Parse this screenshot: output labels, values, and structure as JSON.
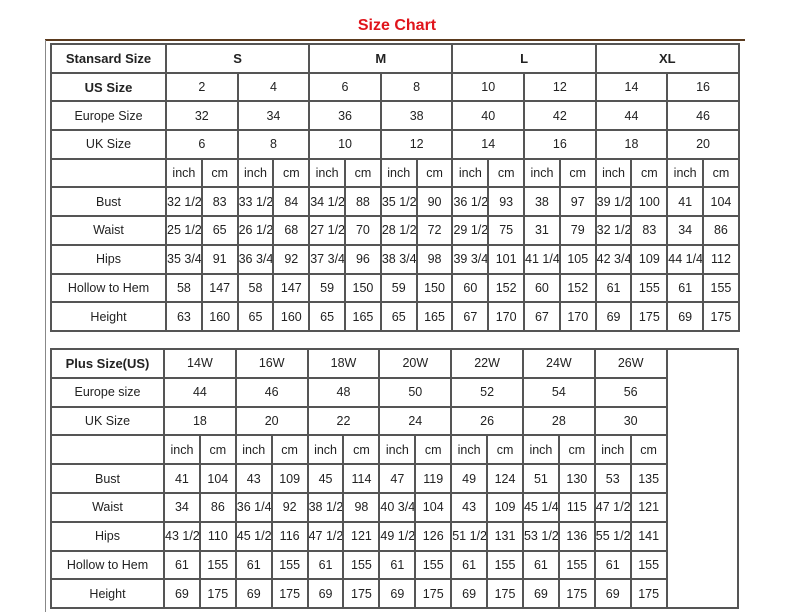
{
  "title": "Size Chart",
  "standard": {
    "header_label": "Stansard Size",
    "groups": [
      "S",
      "M",
      "L",
      "XL"
    ],
    "us_label": "US Size",
    "us": [
      "2",
      "4",
      "6",
      "8",
      "10",
      "12",
      "14",
      "16"
    ],
    "europe_label": "Europe Size",
    "europe": [
      "32",
      "34",
      "36",
      "38",
      "40",
      "42",
      "44",
      "46"
    ],
    "uk_label": "UK Size",
    "uk": [
      "6",
      "8",
      "10",
      "12",
      "14",
      "16",
      "18",
      "20"
    ],
    "unit_inch": "inch",
    "unit_cm": "cm",
    "rows": [
      {
        "label": "Bust",
        "values": [
          "32 1/2",
          "83",
          "33 1/2",
          "84",
          "34 1/2",
          "88",
          "35 1/2",
          "90",
          "36 1/2",
          "93",
          "38",
          "97",
          "39 1/2",
          "100",
          "41",
          "104"
        ]
      },
      {
        "label": "Waist",
        "values": [
          "25 1/2",
          "65",
          "26 1/2",
          "68",
          "27 1/2",
          "70",
          "28 1/2",
          "72",
          "29 1/2",
          "75",
          "31",
          "79",
          "32 1/2",
          "83",
          "34",
          "86"
        ]
      },
      {
        "label": "Hips",
        "values": [
          "35 3/4",
          "91",
          "36 3/4",
          "92",
          "37 3/4",
          "96",
          "38 3/4",
          "98",
          "39 3/4",
          "101",
          "41 1/4",
          "105",
          "42 3/4",
          "109",
          "44 1/4",
          "112"
        ]
      },
      {
        "label": "Hollow to Hem",
        "values": [
          "58",
          "147",
          "58",
          "147",
          "59",
          "150",
          "59",
          "150",
          "60",
          "152",
          "60",
          "152",
          "61",
          "155",
          "61",
          "155"
        ]
      },
      {
        "label": "Height",
        "values": [
          "63",
          "160",
          "65",
          "160",
          "65",
          "165",
          "65",
          "165",
          "67",
          "170",
          "67",
          "170",
          "69",
          "175",
          "69",
          "175"
        ]
      }
    ]
  },
  "plus": {
    "header_label": "Plus Size(US)",
    "sizes": [
      "14W",
      "16W",
      "18W",
      "20W",
      "22W",
      "24W",
      "26W"
    ],
    "europe_label": "Europe size",
    "europe": [
      "44",
      "46",
      "48",
      "50",
      "52",
      "54",
      "56"
    ],
    "uk_label": "UK Size",
    "uk": [
      "18",
      "20",
      "22",
      "24",
      "26",
      "28",
      "30"
    ],
    "unit_inch": "inch",
    "unit_cm": "cm",
    "rows": [
      {
        "label": "Bust",
        "values": [
          "41",
          "104",
          "43",
          "109",
          "45",
          "114",
          "47",
          "119",
          "49",
          "124",
          "51",
          "130",
          "53",
          "135"
        ]
      },
      {
        "label": "Waist",
        "values": [
          "34",
          "86",
          "36 1/4",
          "92",
          "38 1/2",
          "98",
          "40 3/4",
          "104",
          "43",
          "109",
          "45 1/4",
          "115",
          "47 1/2",
          "121"
        ]
      },
      {
        "label": "Hips",
        "values": [
          "43 1/2",
          "110",
          "45 1/2",
          "116",
          "47 1/2",
          "121",
          "49 1/2",
          "126",
          "51 1/2",
          "131",
          "53 1/2",
          "136",
          "55 1/2",
          "141"
        ]
      },
      {
        "label": "Hollow to Hem",
        "values": [
          "61",
          "155",
          "61",
          "155",
          "61",
          "155",
          "61",
          "155",
          "61",
          "155",
          "61",
          "155",
          "61",
          "155"
        ]
      },
      {
        "label": "Height",
        "values": [
          "69",
          "175",
          "69",
          "175",
          "69",
          "175",
          "69",
          "175",
          "69",
          "175",
          "69",
          "175",
          "69",
          "175"
        ]
      }
    ]
  }
}
